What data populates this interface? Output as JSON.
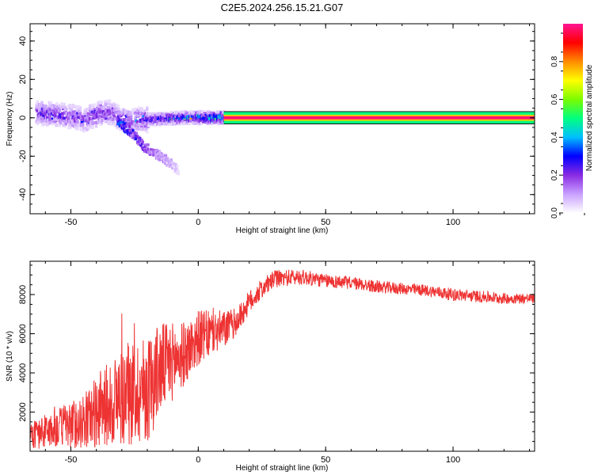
{
  "page_title": "C2E5.2024.256.15.21.G07",
  "chart_data": [
    {
      "type": "heatmap",
      "xlabel": "Height of straight line (km)",
      "ylabel": "Frequency (Hz)",
      "xlim": [
        -66,
        132
      ],
      "ylim": [
        -50,
        49
      ],
      "xticks": [
        -50,
        0,
        50,
        100
      ],
      "yticks": [
        -40,
        -20,
        0,
        20,
        40
      ],
      "colorbar": {
        "label": "Normalized spectral amplitude",
        "range": [
          0,
          1
        ],
        "ticks": [
          "0.0",
          "0.2",
          "0.4",
          "0.6",
          "0.8"
        ],
        "colors": [
          "#ffffff",
          "#c8a0ff",
          "#8a2be2",
          "#0000ff",
          "#00bfff",
          "#00ff80",
          "#7cfc00",
          "#ffff00",
          "#ff8c00",
          "#ff0000",
          "#ff1493"
        ]
      },
      "ridge": [
        {
          "x": -64,
          "y": 2.5,
          "a": 0.45
        },
        {
          "x": -60,
          "y": 2.0,
          "a": 0.5
        },
        {
          "x": -55,
          "y": 1.5,
          "a": 0.5
        },
        {
          "x": -50,
          "y": 0.5,
          "a": 0.45
        },
        {
          "x": -45,
          "y": -1.0,
          "a": 0.45
        },
        {
          "x": -40,
          "y": 2.0,
          "a": 0.5
        },
        {
          "x": -35,
          "y": 3.0,
          "a": 0.45
        },
        {
          "x": -32,
          "y": 0.0,
          "a": 0.5
        },
        {
          "x": -28,
          "y": -1.5,
          "a": 0.45
        },
        {
          "x": -24,
          "y": -1.0,
          "a": 0.5
        },
        {
          "x": -20,
          "y": -1.0,
          "a": 0.6
        },
        {
          "x": -15,
          "y": -0.5,
          "a": 0.65
        },
        {
          "x": -10,
          "y": -0.3,
          "a": 0.75
        },
        {
          "x": -5,
          "y": 0.0,
          "a": 0.8
        },
        {
          "x": 0,
          "y": 0.0,
          "a": 0.88
        },
        {
          "x": 5,
          "y": 0.0,
          "a": 0.92
        },
        {
          "x": 10,
          "y": 0.0,
          "a": 0.95
        }
      ],
      "band": {
        "x_start": 10,
        "x_end": 132,
        "y": 0,
        "a": 0.98
      },
      "secondary_branch": [
        {
          "x": -32,
          "y": -3,
          "a": 0.4
        },
        {
          "x": -28,
          "y": -6,
          "a": 0.3
        },
        {
          "x": -25,
          "y": -10,
          "a": 0.3
        },
        {
          "x": -22,
          "y": -15,
          "a": 0.25
        },
        {
          "x": -18,
          "y": -18,
          "a": 0.18
        },
        {
          "x": -12,
          "y": -23,
          "a": 0.12
        },
        {
          "x": -8,
          "y": -28,
          "a": 0.06
        }
      ]
    },
    {
      "type": "line",
      "xlabel": "Height of straight line (km)",
      "ylabel": "SNR (10 * v/v)",
      "xlim": [
        -66,
        132
      ],
      "ylim": [
        0,
        9700
      ],
      "xticks": [
        -50,
        0,
        50,
        100
      ],
      "yticks": [
        2000,
        4000,
        6000,
        8000
      ],
      "color": "#ee3333",
      "trend": [
        {
          "x": -66,
          "y": 800,
          "amp": 700
        },
        {
          "x": -55,
          "y": 1200,
          "amp": 1000
        },
        {
          "x": -45,
          "y": 1500,
          "amp": 1400
        },
        {
          "x": -38,
          "y": 2200,
          "amp": 2000
        },
        {
          "x": -30,
          "y": 2800,
          "amp": 2600
        },
        {
          "x": -20,
          "y": 3200,
          "amp": 2800
        },
        {
          "x": -15,
          "y": 4200,
          "amp": 2400
        },
        {
          "x": -10,
          "y": 4600,
          "amp": 2000
        },
        {
          "x": -5,
          "y": 5000,
          "amp": 1600
        },
        {
          "x": 0,
          "y": 5800,
          "amp": 1400
        },
        {
          "x": 5,
          "y": 6000,
          "amp": 1200
        },
        {
          "x": 10,
          "y": 6200,
          "amp": 1000
        },
        {
          "x": 15,
          "y": 6600,
          "amp": 700
        },
        {
          "x": 20,
          "y": 7600,
          "amp": 600
        },
        {
          "x": 25,
          "y": 8300,
          "amp": 500
        },
        {
          "x": 30,
          "y": 8800,
          "amp": 450
        },
        {
          "x": 40,
          "y": 8900,
          "amp": 400
        },
        {
          "x": 50,
          "y": 8700,
          "amp": 350
        },
        {
          "x": 60,
          "y": 8600,
          "amp": 330
        },
        {
          "x": 70,
          "y": 8400,
          "amp": 320
        },
        {
          "x": 80,
          "y": 8300,
          "amp": 300
        },
        {
          "x": 90,
          "y": 8200,
          "amp": 300
        },
        {
          "x": 100,
          "y": 8000,
          "amp": 320
        },
        {
          "x": 110,
          "y": 7900,
          "amp": 300
        },
        {
          "x": 120,
          "y": 7800,
          "amp": 280
        },
        {
          "x": 132,
          "y": 7800,
          "amp": 250
        }
      ]
    }
  ]
}
